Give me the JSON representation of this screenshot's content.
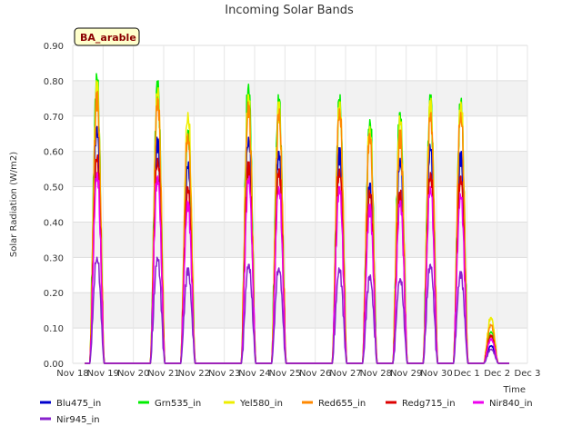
{
  "chart_data": {
    "type": "line",
    "title": "Incoming Solar Bands",
    "xlabel": "Time",
    "ylabel": "Solar Radiation (W/m2)",
    "site_label": "BA_arable",
    "ylim": [
      0,
      0.9
    ],
    "yticks": [
      "0.00",
      "0.10",
      "0.20",
      "0.30",
      "0.40",
      "0.50",
      "0.60",
      "0.70",
      "0.80",
      "0.90"
    ],
    "xlim": [
      0,
      15
    ],
    "xticks": [
      "Nov 18",
      "Nov 19",
      "Nov 20",
      "Nov 21",
      "Nov 22",
      "Nov 23",
      "Nov 24",
      "Nov 25",
      "Nov 26",
      "Nov 27",
      "Nov 28",
      "Nov 29",
      "Nov 30",
      "Dec 1",
      "Dec 2",
      "Dec 3"
    ],
    "grid": true,
    "legend_position": "bottom",
    "day_centers": [
      0.8,
      2.8,
      3.8,
      5.8,
      6.8,
      8.8,
      9.8,
      10.8,
      11.8,
      12.8,
      13.8
    ],
    "series": [
      {
        "name": "Blu475_in",
        "color": "#0000cc",
        "peaks": [
          0.67,
          0.64,
          0.57,
          0.64,
          0.6,
          0.61,
          0.51,
          0.58,
          0.62,
          0.6,
          0.05
        ]
      },
      {
        "name": "Grn535_in",
        "color": "#00ee00",
        "peaks": [
          0.82,
          0.8,
          0.66,
          0.79,
          0.76,
          0.76,
          0.69,
          0.71,
          0.76,
          0.75,
          0.09
        ]
      },
      {
        "name": "Yel580_in",
        "color": "#eeee00",
        "peaks": [
          0.8,
          0.78,
          0.71,
          0.76,
          0.74,
          0.74,
          0.67,
          0.7,
          0.75,
          0.74,
          0.13
        ]
      },
      {
        "name": "Red655_in",
        "color": "#ff8800",
        "peaks": [
          0.77,
          0.75,
          0.65,
          0.74,
          0.72,
          0.72,
          0.65,
          0.66,
          0.71,
          0.71,
          0.11
        ]
      },
      {
        "name": "Redg715_in",
        "color": "#dd0000",
        "peaks": [
          0.59,
          0.58,
          0.5,
          0.57,
          0.55,
          0.55,
          0.49,
          0.49,
          0.54,
          0.53,
          0.08
        ]
      },
      {
        "name": "Nir840_in",
        "color": "#ee00ee",
        "peaks": [
          0.54,
          0.53,
          0.46,
          0.53,
          0.5,
          0.5,
          0.45,
          0.46,
          0.5,
          0.48,
          0.07
        ]
      },
      {
        "name": "Nir945_in",
        "color": "#8822cc",
        "peaks": [
          0.3,
          0.3,
          0.27,
          0.28,
          0.27,
          0.27,
          0.25,
          0.24,
          0.28,
          0.26,
          0.04
        ]
      }
    ]
  }
}
